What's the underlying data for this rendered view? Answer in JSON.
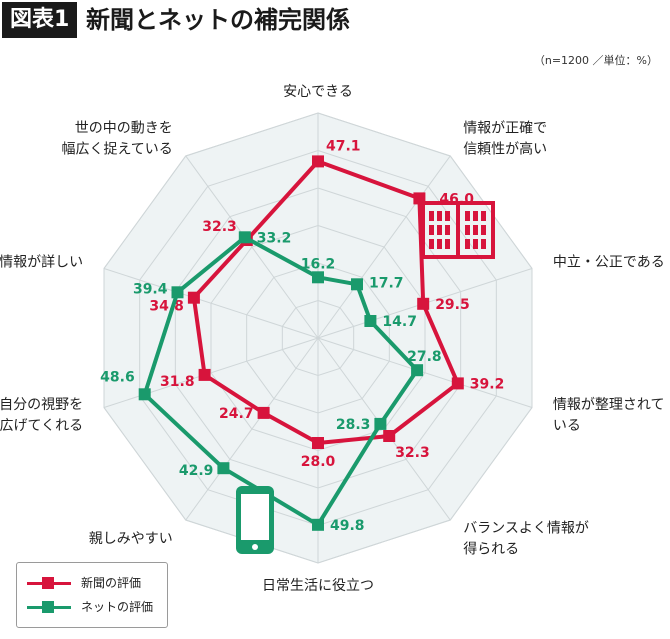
{
  "header": {
    "badge": "図表1",
    "title": "新聞とネットの補完関係"
  },
  "note": "（n=1200 ／単位：%）",
  "colors": {
    "newspaper": "#d7143c",
    "internet": "#1a9a6c",
    "grid": "#cfd6d8",
    "fill": "#eef3f4"
  },
  "chart_data": {
    "type": "radar",
    "title": "",
    "unit": "%",
    "categories": [
      "安心できる",
      "情報が正確で\n信頼性が高い",
      "中立・公正である",
      "情報が整理されて\nいる",
      "バランスよく情報が\n得られる",
      "日常生活に役立つ",
      "親しみやすい",
      "自分の視野を\n広げてくれる",
      "情報が詳しい",
      "世の中の動きを\n幅広く捉えている"
    ],
    "series": [
      {
        "name": "新聞の評価",
        "color": "#d7143c",
        "values": [
          47.1,
          46.0,
          29.5,
          39.2,
          32.3,
          28.0,
          24.7,
          31.8,
          34.8,
          32.3
        ]
      },
      {
        "name": "ネットの評価",
        "color": "#1a9a6c",
        "values": [
          16.2,
          17.7,
          14.7,
          27.8,
          28.3,
          49.8,
          42.9,
          48.6,
          39.4,
          33.2
        ]
      }
    ]
  },
  "icons": {
    "newspaper": "newspaper-icon",
    "internet": "smartphone-icon"
  },
  "legend": {
    "newspaper": "新聞の評価",
    "internet": "ネットの評価"
  }
}
